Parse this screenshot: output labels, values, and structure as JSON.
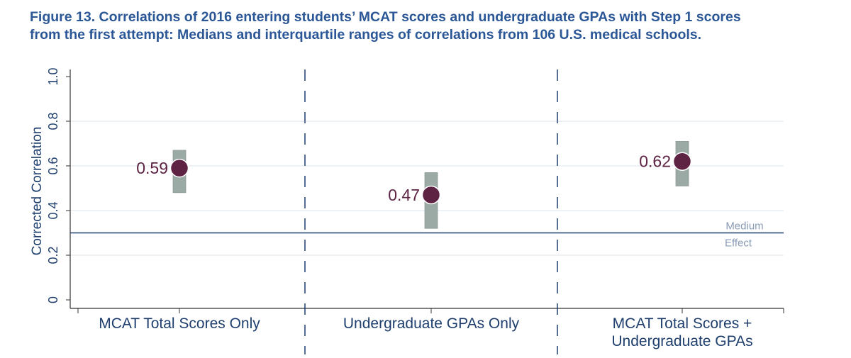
{
  "chart_data": {
    "type": "scatter",
    "title_line1": "Figure 13. Correlations of 2016 entering students’ MCAT scores and undergraduate GPAs with Step 1 scores",
    "title_line2": "from the first attempt: Medians and interquartile ranges of correlations from 106 U.S. medical schools.",
    "ylabel": "Corrected Correlation",
    "ylim": [
      0,
      1.0
    ],
    "yticks": [
      "0",
      "0.2",
      "0.4",
      "0.6",
      "0.8",
      "1.0"
    ],
    "grid": true,
    "categories": [
      {
        "line1": "MCAT Total Scores Only",
        "line2": ""
      },
      {
        "line1": "Undergraduate GPAs Only",
        "line2": ""
      },
      {
        "line1": "MCAT Total Scores +",
        "line2": "Undergraduate GPAs"
      }
    ],
    "medians": [
      0.59,
      0.47,
      0.62
    ],
    "median_labels": [
      "0.59",
      "0.47",
      "0.62"
    ],
    "iqr_low": [
      0.48,
      0.32,
      0.51
    ],
    "iqr_high": [
      0.67,
      0.57,
      0.71
    ],
    "reference_line": {
      "value": 0.3,
      "label_line1": "Medium",
      "label_line2": "Effect"
    },
    "colors": {
      "title": "#2b5797",
      "axis": "#1f3f6e",
      "point": "#5e2243",
      "iqr": "#9caaa6",
      "ref": "#1f3f6e",
      "ref_label": "#8a9bb5",
      "grid": "#e6eef3"
    }
  }
}
